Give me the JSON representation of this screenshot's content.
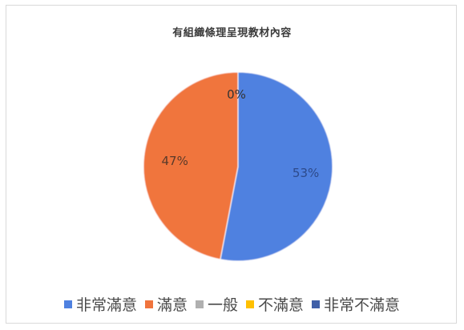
{
  "chart_data": {
    "type": "pie",
    "title": "有組織條理呈現教材內容",
    "categories": [
      "非常滿意",
      "滿意",
      "一般",
      "不滿意",
      "非常不滿意"
    ],
    "values": [
      53,
      47,
      0,
      0,
      0
    ],
    "labels": [
      "53%",
      "47%",
      "0%",
      "",
      ""
    ],
    "colors": [
      "#4f81e0",
      "#f0743d",
      "#b0b0b0",
      "#ffc000",
      "#3f5fa8"
    ],
    "label_colors": [
      "#2d4a8a",
      "#5a3a2a",
      "#333333",
      "#333333",
      "#333333"
    ],
    "legend_position": "bottom"
  }
}
